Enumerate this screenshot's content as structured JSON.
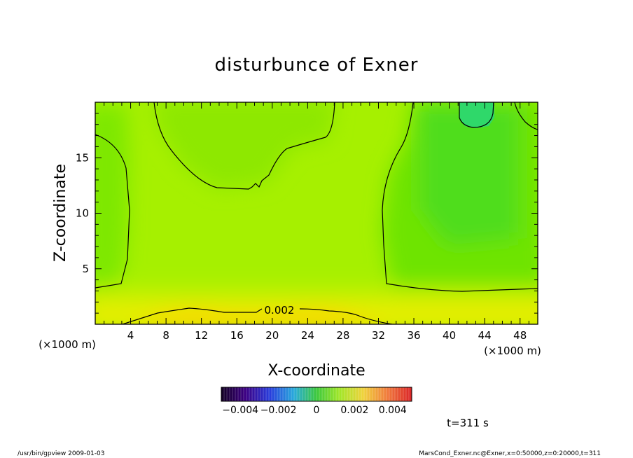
{
  "chart_data": {
    "type": "heatmap",
    "title": "disturbunce of Exner",
    "xlabel": "X-coordinate",
    "ylabel": "Z-coordinate",
    "x_unit": "(×1000 m)",
    "y_unit": "(×1000 m)",
    "xlim": [
      0,
      50
    ],
    "ylim": [
      0,
      20
    ],
    "xticks": [
      4,
      8,
      12,
      16,
      20,
      24,
      28,
      32,
      36,
      40,
      44,
      48
    ],
    "yticks": [
      5,
      10,
      15
    ],
    "contour_labels": [
      {
        "x": 19.5,
        "y": 1.3,
        "text": "0.002"
      }
    ],
    "colorbar": {
      "min": -0.005,
      "max": 0.005,
      "tick_labels": [
        "−0.004",
        "−0.002",
        "0",
        "0.002",
        "0.004"
      ],
      "tick_values": [
        -0.004,
        -0.002,
        0,
        0.002,
        0.004
      ]
    },
    "time_label": "t=311 s"
  },
  "footer": {
    "left": "/usr/bin/gpview   2009-01-03",
    "right": "MarsCond_Exner.nc@Exner,x=0:50000,z=0:20000,t=311"
  }
}
